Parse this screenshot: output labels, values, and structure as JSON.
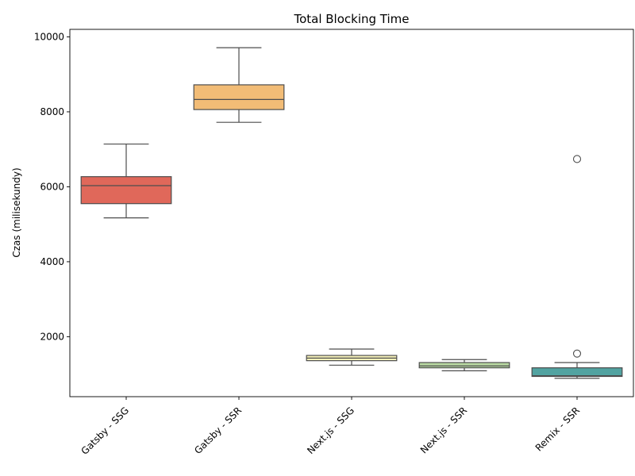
{
  "chart_data": {
    "type": "box",
    "title": "Total Blocking Time",
    "xlabel": "",
    "ylabel": "Czas (milisekundy)",
    "ylim": [
      400,
      10200
    ],
    "yticks": [
      2000,
      4000,
      6000,
      8000,
      10000
    ],
    "grid": false,
    "categories": [
      "Gatsby - SSG",
      "Gatsby - SSR",
      "Next.js - SSG",
      "Next.js - SSR",
      "Remix - SSR"
    ],
    "boxes": [
      {
        "category": "Gatsby - SSG",
        "whisker_low": 5170,
        "q1": 5550,
        "median": 6030,
        "q3": 6270,
        "whisker_high": 7140,
        "outliers": [],
        "color": "#e0685a"
      },
      {
        "category": "Gatsby - SSR",
        "whisker_low": 7720,
        "q1": 8060,
        "median": 8330,
        "q3": 8720,
        "whisker_high": 9710,
        "outliers": [],
        "color": "#f2bc76"
      },
      {
        "category": "Next.js - SSG",
        "whisker_low": 1240,
        "q1": 1360,
        "median": 1430,
        "q3": 1500,
        "whisker_high": 1670,
        "outliers": [],
        "color": "#f6f1b9"
      },
      {
        "category": "Next.js - SSR",
        "whisker_low": 1090,
        "q1": 1170,
        "median": 1220,
        "q3": 1310,
        "whisker_high": 1390,
        "outliers": [],
        "color": "#b8d9a2"
      },
      {
        "category": "Remix - SSR",
        "whisker_low": 890,
        "q1": 940,
        "median": 960,
        "q3": 1170,
        "whisker_high": 1310,
        "outliers": [
          1550,
          6740
        ],
        "color": "#52a3a1"
      }
    ]
  }
}
